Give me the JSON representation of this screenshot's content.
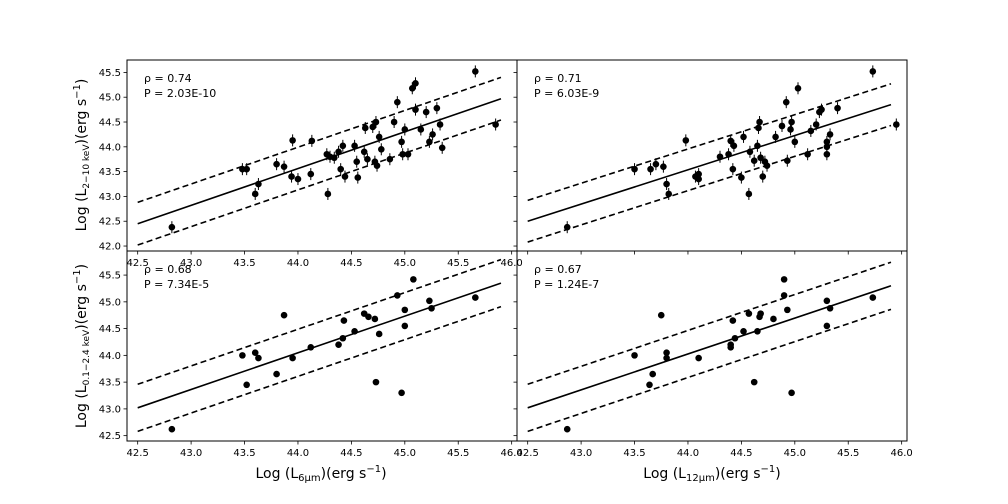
{
  "figure": {
    "xlabels": [
      "Log (L",
      "6μm",
      ")(erg s",
      "−1",
      ")",
      "Log (L",
      "12μm",
      ")(erg s",
      "−1",
      ")"
    ],
    "ylabels_top": [
      "Log (L",
      "2−10 keV",
      ")(erg s",
      "−1",
      ")"
    ],
    "ylabels_bottom": [
      "Log (L",
      "0.1−2.4 keV",
      ")(erg s",
      "−1",
      ")"
    ]
  },
  "chart_data": [
    {
      "type": "scatter",
      "panel": "top-left",
      "annotation_rho": "ρ = 0.74",
      "annotation_p": "P = 2.03E-10",
      "xlim": [
        42.4,
        46.05
      ],
      "ylim": [
        41.9,
        45.75
      ],
      "x_ticks": [
        "42.5",
        "43.0",
        "43.5",
        "44.0",
        "44.5",
        "45.0",
        "45.5",
        "46.0"
      ],
      "y_ticks": [
        "42.0",
        "42.5",
        "43.0",
        "43.5",
        "44.0",
        "44.5",
        "45.0",
        "45.5"
      ],
      "fit_line": [
        [
          42.5,
          42.45
        ],
        [
          45.9,
          44.97
        ]
      ],
      "upper_line": [
        [
          42.5,
          42.88
        ],
        [
          45.9,
          45.4
        ]
      ],
      "lower_line": [
        [
          42.5,
          42.02
        ],
        [
          45.9,
          44.54
        ]
      ],
      "points": [
        [
          42.82,
          42.38
        ],
        [
          43.48,
          43.55
        ],
        [
          43.52,
          43.55
        ],
        [
          43.6,
          43.05
        ],
        [
          43.63,
          43.25
        ],
        [
          43.8,
          43.65
        ],
        [
          43.87,
          43.6
        ],
        [
          43.94,
          43.4
        ],
        [
          43.95,
          44.13
        ],
        [
          44.0,
          43.35
        ],
        [
          44.12,
          43.45
        ],
        [
          44.13,
          44.12
        ],
        [
          44.27,
          43.85
        ],
        [
          44.28,
          43.05
        ],
        [
          44.3,
          43.8
        ],
        [
          44.34,
          43.78
        ],
        [
          44.38,
          43.9
        ],
        [
          44.4,
          43.55
        ],
        [
          44.42,
          44.02
        ],
        [
          44.44,
          43.4
        ],
        [
          44.53,
          44.02
        ],
        [
          44.55,
          43.7
        ],
        [
          44.56,
          43.38
        ],
        [
          44.62,
          43.9
        ],
        [
          44.63,
          44.38
        ],
        [
          44.65,
          43.75
        ],
        [
          44.7,
          44.4
        ],
        [
          44.72,
          43.7
        ],
        [
          44.73,
          44.5
        ],
        [
          44.74,
          43.62
        ],
        [
          44.76,
          44.2
        ],
        [
          44.78,
          43.95
        ],
        [
          44.86,
          43.75
        ],
        [
          44.9,
          44.5
        ],
        [
          44.93,
          44.9
        ],
        [
          44.97,
          44.1
        ],
        [
          44.98,
          43.85
        ],
        [
          45.0,
          44.35
        ],
        [
          45.03,
          43.85
        ],
        [
          45.07,
          45.18
        ],
        [
          45.1,
          45.28
        ],
        [
          45.1,
          44.75
        ],
        [
          45.15,
          44.35
        ],
        [
          45.2,
          44.7
        ],
        [
          45.23,
          44.1
        ],
        [
          45.26,
          44.25
        ],
        [
          45.3,
          44.78
        ],
        [
          45.33,
          44.45
        ],
        [
          45.35,
          43.98
        ],
        [
          45.66,
          45.52
        ],
        [
          45.85,
          44.45
        ]
      ]
    },
    {
      "type": "scatter",
      "panel": "top-right",
      "annotation_rho": "ρ = 0.71",
      "annotation_p": "P = 6.03E-9",
      "xlim": [
        42.4,
        46.05
      ],
      "ylim": [
        41.9,
        45.75
      ],
      "x_ticks": [],
      "y_ticks": [],
      "fit_line": [
        [
          42.5,
          42.5
        ],
        [
          45.9,
          44.85
        ]
      ],
      "upper_line": [
        [
          42.5,
          42.92
        ],
        [
          45.9,
          45.27
        ]
      ],
      "lower_line": [
        [
          42.5,
          42.08
        ],
        [
          45.9,
          44.43
        ]
      ],
      "points": [
        [
          42.87,
          42.38
        ],
        [
          43.5,
          43.55
        ],
        [
          43.65,
          43.55
        ],
        [
          43.7,
          43.65
        ],
        [
          43.77,
          43.6
        ],
        [
          43.8,
          43.25
        ],
        [
          43.82,
          43.05
        ],
        [
          43.98,
          44.13
        ],
        [
          44.07,
          43.4
        ],
        [
          44.1,
          43.45
        ],
        [
          44.1,
          43.35
        ],
        [
          44.3,
          43.8
        ],
        [
          44.38,
          43.85
        ],
        [
          44.4,
          44.12
        ],
        [
          44.42,
          43.55
        ],
        [
          44.43,
          44.02
        ],
        [
          44.5,
          43.38
        ],
        [
          44.52,
          44.2
        ],
        [
          44.57,
          43.05
        ],
        [
          44.58,
          43.9
        ],
        [
          44.62,
          43.72
        ],
        [
          44.65,
          44.02
        ],
        [
          44.66,
          44.38
        ],
        [
          44.67,
          44.5
        ],
        [
          44.68,
          43.78
        ],
        [
          44.7,
          43.4
        ],
        [
          44.72,
          43.7
        ],
        [
          44.74,
          43.62
        ],
        [
          44.82,
          44.2
        ],
        [
          44.88,
          44.42
        ],
        [
          44.92,
          44.9
        ],
        [
          44.93,
          43.72
        ],
        [
          44.97,
          44.5
        ],
        [
          44.96,
          44.35
        ],
        [
          45.0,
          44.1
        ],
        [
          45.03,
          45.18
        ],
        [
          45.12,
          43.85
        ],
        [
          45.15,
          44.32
        ],
        [
          45.2,
          44.45
        ],
        [
          45.23,
          44.7
        ],
        [
          45.25,
          44.75
        ],
        [
          45.3,
          44.1
        ],
        [
          45.3,
          44.0
        ],
        [
          45.3,
          43.85
        ],
        [
          45.33,
          44.25
        ],
        [
          45.4,
          44.78
        ],
        [
          45.73,
          45.52
        ],
        [
          45.95,
          44.45
        ]
      ]
    },
    {
      "type": "scatter",
      "panel": "bottom-left",
      "annotation_rho": "ρ = 0.68",
      "annotation_p": "P = 7.34E-5",
      "xlim": [
        42.4,
        46.05
      ],
      "ylim": [
        42.4,
        45.95
      ],
      "x_ticks": [
        "42.5",
        "43.0",
        "43.5",
        "44.0",
        "44.5",
        "45.0",
        "45.5",
        "46.0"
      ],
      "y_ticks": [
        "42.5",
        "43.0",
        "43.5",
        "44.0",
        "44.5",
        "45.0",
        "45.5"
      ],
      "fit_line": [
        [
          42.5,
          43.02
        ],
        [
          45.9,
          45.35
        ]
      ],
      "upper_line": [
        [
          42.5,
          43.46
        ],
        [
          45.9,
          45.79
        ]
      ],
      "lower_line": [
        [
          42.5,
          42.58
        ],
        [
          45.9,
          44.91
        ]
      ],
      "points": [
        [
          42.82,
          42.62
        ],
        [
          43.48,
          44.0
        ],
        [
          43.52,
          43.45
        ],
        [
          43.6,
          44.05
        ],
        [
          43.63,
          43.95
        ],
        [
          43.8,
          43.65
        ],
        [
          43.87,
          44.75
        ],
        [
          43.95,
          43.95
        ],
        [
          44.12,
          44.15
        ],
        [
          44.38,
          44.2
        ],
        [
          44.42,
          44.32
        ],
        [
          44.43,
          44.65
        ],
        [
          44.53,
          44.45
        ],
        [
          44.62,
          44.78
        ],
        [
          44.66,
          44.72
        ],
        [
          44.72,
          44.68
        ],
        [
          44.73,
          43.5
        ],
        [
          44.76,
          44.4
        ],
        [
          44.93,
          45.12
        ],
        [
          44.97,
          43.3
        ],
        [
          45.0,
          44.85
        ],
        [
          45.0,
          44.55
        ],
        [
          45.08,
          45.42
        ],
        [
          45.23,
          45.02
        ],
        [
          45.25,
          44.88
        ],
        [
          45.66,
          45.08
        ]
      ]
    },
    {
      "type": "scatter",
      "panel": "bottom-right",
      "annotation_rho": "ρ = 0.67",
      "annotation_p": "P = 1.24E-7",
      "xlim": [
        42.4,
        46.05
      ],
      "ylim": [
        42.4,
        45.95
      ],
      "x_ticks": [
        "42.5",
        "43.0",
        "43.5",
        "44.0",
        "44.5",
        "45.0",
        "45.5",
        "46.0"
      ],
      "y_ticks": [],
      "fit_line": [
        [
          42.5,
          43.02
        ],
        [
          45.9,
          45.3
        ]
      ],
      "upper_line": [
        [
          42.5,
          43.46
        ],
        [
          45.9,
          45.74
        ]
      ],
      "lower_line": [
        [
          42.5,
          42.58
        ],
        [
          45.9,
          44.86
        ]
      ],
      "points": [
        [
          42.87,
          42.62
        ],
        [
          43.5,
          44.0
        ],
        [
          43.64,
          43.45
        ],
        [
          43.67,
          43.65
        ],
        [
          43.75,
          44.75
        ],
        [
          43.8,
          44.05
        ],
        [
          43.8,
          43.95
        ],
        [
          44.1,
          43.95
        ],
        [
          44.4,
          44.2
        ],
        [
          44.4,
          44.15
        ],
        [
          44.42,
          44.65
        ],
        [
          44.44,
          44.32
        ],
        [
          44.52,
          44.45
        ],
        [
          44.57,
          44.78
        ],
        [
          44.62,
          43.5
        ],
        [
          44.65,
          44.45
        ],
        [
          44.67,
          44.72
        ],
        [
          44.68,
          44.78
        ],
        [
          44.8,
          44.68
        ],
        [
          44.9,
          45.42
        ],
        [
          44.9,
          45.12
        ],
        [
          44.93,
          44.85
        ],
        [
          44.97,
          43.3
        ],
        [
          45.3,
          45.02
        ],
        [
          45.3,
          44.55
        ],
        [
          45.33,
          44.88
        ],
        [
          45.73,
          45.08
        ]
      ]
    }
  ]
}
